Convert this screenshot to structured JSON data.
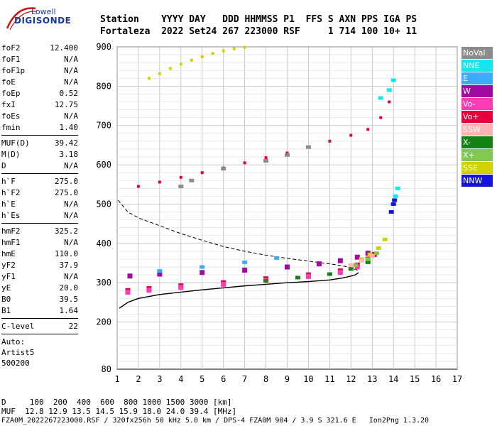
{
  "logo": {
    "line1": "Lowell",
    "line2": "DIGISONDE"
  },
  "header": {
    "line1": "Station    YYYY DAY   DDD HHMMSS P1  FFS S AXN PPS IGA PS",
    "line2": "Fortaleza  2022 Set24 267 223000 RSF     1 714 100 10+ 11"
  },
  "params": [
    {
      "k": "foF2",
      "v": "12.400"
    },
    {
      "k": "foF1",
      "v": "N/A"
    },
    {
      "k": "foF1p",
      "v": "N/A"
    },
    {
      "k": "foE",
      "v": "N/A"
    },
    {
      "k": "foEp",
      "v": "0.52"
    },
    {
      "k": "fxI",
      "v": "12.75"
    },
    {
      "k": "foEs",
      "v": "N/A"
    },
    {
      "k": "fmin",
      "v": "1.40"
    },
    {
      "sep": true
    },
    {
      "k": "MUF(D)",
      "v": "39.42"
    },
    {
      "k": "M(D)",
      "v": "3.18"
    },
    {
      "k": "D",
      "v": "N/A"
    },
    {
      "sep": true
    },
    {
      "k": "h`F",
      "v": "275.0"
    },
    {
      "k": "h`F2",
      "v": "275.0"
    },
    {
      "k": "h`E",
      "v": "N/A"
    },
    {
      "k": "h`Es",
      "v": "N/A"
    },
    {
      "sep": true
    },
    {
      "k": "hmF2",
      "v": "325.2"
    },
    {
      "k": "hmF1",
      "v": "N/A"
    },
    {
      "k": "hmE",
      "v": "110.0"
    },
    {
      "k": "yF2",
      "v": "37.9"
    },
    {
      "k": "yF1",
      "v": "N/A"
    },
    {
      "k": "yE",
      "v": "20.0"
    },
    {
      "k": "B0",
      "v": "39.5"
    },
    {
      "k": "B1",
      "v": "1.64"
    },
    {
      "sep": true
    },
    {
      "k": "C-level",
      "v": "22"
    },
    {
      "sep": true
    }
  ],
  "auto": {
    "l1": "Auto:",
    "l2": "Artist5",
    "l3": "500200"
  },
  "legend": [
    {
      "label": "NoVal",
      "color": "#8c8c8c"
    },
    {
      "label": "NNE",
      "color": "#14e6f0"
    },
    {
      "label": "E",
      "color": "#3caaff"
    },
    {
      "label": "W",
      "color": "#a00aa0"
    },
    {
      "label": "Vo-",
      "color": "#ff3cb4"
    },
    {
      "label": "Vo+",
      "color": "#e6003c"
    },
    {
      "label": "SSW",
      "color": "#ffb4b4"
    },
    {
      "label": "X-",
      "color": "#148214"
    },
    {
      "label": "X+",
      "color": "#82c850"
    },
    {
      "label": "SSE",
      "color": "#d2d200"
    },
    {
      "label": "NNW",
      "color": "#1414dc"
    }
  ],
  "footer": {
    "row1": "D     100  200  400  600  800 1000 1500 3000 [km]",
    "row2": "MUF  12.8 12.9 13.5 14.5 15.9 18.0 24.0 39.4 [MHz]",
    "row3": "FZA0M_2022267223000.RSF / 320fx256h 50 kHz 5.0 km / DPS-4 FZA0M 904 / 3.9 S 321.6 E   Ion2Png 1.3.20"
  },
  "chart_data": {
    "type": "scatter",
    "xlim": [
      1,
      17
    ],
    "ylim": [
      80,
      900
    ],
    "xticks": [
      1,
      2,
      3,
      4,
      5,
      6,
      7,
      8,
      9,
      10,
      11,
      12,
      13,
      14,
      15,
      16,
      17
    ],
    "yticks": [
      80,
      200,
      300,
      400,
      500,
      600,
      700,
      800,
      900
    ],
    "grid": true,
    "legend_position": "right",
    "profile_solid": {
      "x": [
        1.1,
        1.5,
        2.0,
        3.0,
        4.0,
        5.0,
        6.0,
        7.0,
        8.0,
        9.0,
        10.0,
        11.0,
        11.6,
        12.0,
        12.2,
        12.35
      ],
      "y": [
        235,
        250,
        260,
        270,
        276,
        282,
        287,
        292,
        296,
        300,
        303,
        307,
        312,
        317,
        320,
        325
      ]
    },
    "profile_dashed": {
      "x": [
        1.05,
        1.5,
        2.0,
        3.0,
        4.0,
        5.0,
        6.0,
        7.0,
        8.0,
        9.0,
        10.0,
        11.0,
        11.6,
        12.0,
        12.3,
        12.35
      ],
      "y": [
        510,
        480,
        465,
        445,
        425,
        408,
        392,
        380,
        370,
        362,
        355,
        348,
        343,
        338,
        332,
        325
      ]
    },
    "series": [
      {
        "name": "W",
        "color": "#a00aa0",
        "x": [
          1.6,
          3.0,
          5.0,
          7.0,
          9.0,
          10.5,
          11.5,
          12.3,
          12.8
        ],
        "y": [
          317,
          322,
          326,
          332,
          340,
          348,
          356,
          365,
          375
        ]
      },
      {
        "name": "E",
        "color": "#3caaff",
        "x": [
          3.0,
          5.0,
          7.0,
          8.5
        ],
        "y": [
          330,
          340,
          352,
          363
        ]
      },
      {
        "name": "Vo+",
        "color": "#e6003c",
        "x": [
          1.5,
          2.5,
          4.0,
          6.0,
          8.0,
          10.0,
          11.5,
          12.3,
          12.8,
          13.1
        ],
        "y": [
          280,
          285,
          292,
          300,
          310,
          320,
          330,
          345,
          360,
          372
        ]
      },
      {
        "name": "Vo-",
        "color": "#ff3cb4",
        "x": [
          1.5,
          2.5,
          4.0,
          6.0,
          8.0,
          10.0,
          11.5,
          12.3
        ],
        "y": [
          276,
          281,
          288,
          296,
          306,
          316,
          326,
          340
        ]
      },
      {
        "name": "X-",
        "color": "#148214",
        "x": [
          8.0,
          9.5,
          11.0,
          12.0,
          12.8
        ],
        "y": [
          305,
          313,
          322,
          335,
          352
        ]
      },
      {
        "name": "X+",
        "color": "#82c850",
        "x": [
          12.2,
          12.8,
          13.2
        ],
        "y": [
          345,
          360,
          375
        ]
      },
      {
        "name": "SSE",
        "color": "#d2d200",
        "x": [
          12.5,
          12.9,
          13.3,
          13.6
        ],
        "y": [
          360,
          372,
          388,
          410
        ]
      },
      {
        "name": "SSW",
        "color": "#ffb4b4",
        "x": [
          12.0,
          12.5,
          13.0
        ],
        "y": [
          345,
          356,
          368
        ]
      },
      {
        "name": "NNW",
        "color": "#1414dc",
        "x": [
          13.9,
          14.0,
          14.05
        ],
        "y": [
          480,
          500,
          510
        ]
      },
      {
        "name": "NNE",
        "color": "#14e6f0",
        "x": [
          13.4,
          13.8,
          14.0,
          14.1,
          14.2
        ],
        "y": [
          770,
          790,
          815,
          520,
          540
        ]
      },
      {
        "name": "NoVal",
        "color": "#8c8c8c",
        "x": [
          4.0,
          4.5,
          6.0,
          8.0,
          9.0,
          10.0
        ],
        "y": [
          545,
          560,
          590,
          610,
          625,
          645
        ]
      }
    ],
    "multi_hop_echoes": [
      {
        "color": "#e6003c",
        "x": [
          2.0,
          3.0,
          4.0,
          5.0,
          6.0,
          7.0,
          8.0,
          9.0,
          10.0,
          11.0,
          12.0,
          12.8,
          13.4,
          13.8
        ],
        "y": [
          545,
          556,
          568,
          580,
          592,
          605,
          618,
          630,
          645,
          660,
          675,
          690,
          720,
          760
        ]
      },
      {
        "color": "#d2d200",
        "x": [
          2.5,
          3.0,
          3.5,
          4.0,
          4.5,
          5.0,
          5.5,
          6.0,
          6.5,
          7.0
        ],
        "y": [
          820,
          832,
          845,
          856,
          866,
          875,
          883,
          890,
          895,
          899
        ]
      }
    ]
  }
}
